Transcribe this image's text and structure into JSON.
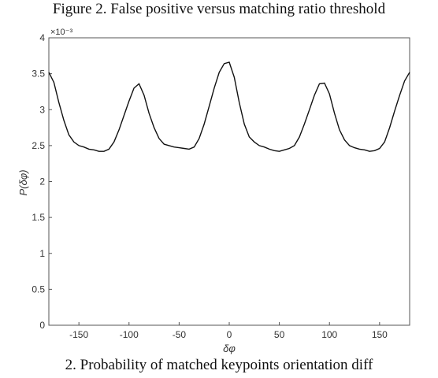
{
  "captions": {
    "top": "Figure 2. False positive versus matching ratio threshold",
    "bottom": "2. Probability of matched keypoints orientation diff"
  },
  "chart_data": {
    "type": "line",
    "title": "",
    "xlabel": "δφ",
    "ylabel": "P(δφ)",
    "y_exponent_label": "×10⁻³",
    "xlim": [
      -180,
      180
    ],
    "ylim": [
      0,
      4
    ],
    "xticks": [
      -150,
      -100,
      -50,
      0,
      50,
      100,
      150
    ],
    "yticks": [
      0,
      0.5,
      1,
      1.5,
      2,
      2.5,
      3,
      3.5,
      4
    ],
    "grid": false,
    "line_color": "#111111",
    "series": [
      {
        "x": [
          -180,
          -175,
          -170,
          -165,
          -160,
          -155,
          -150,
          -145,
          -140,
          -135,
          -130,
          -125,
          -120,
          -115,
          -110,
          -105,
          -100,
          -95,
          -90,
          -85,
          -80,
          -75,
          -70,
          -65,
          -60,
          -55,
          -50,
          -45,
          -40,
          -35,
          -30,
          -25,
          -20,
          -15,
          -10,
          -5,
          0,
          5,
          10,
          15,
          20,
          25,
          30,
          35,
          40,
          45,
          50,
          55,
          60,
          65,
          70,
          75,
          80,
          85,
          90,
          95,
          100,
          105,
          110,
          115,
          120,
          125,
          130,
          135,
          140,
          145,
          150,
          155,
          160,
          165,
          170,
          175,
          180
        ],
        "values": [
          3.52,
          3.38,
          3.1,
          2.85,
          2.65,
          2.55,
          2.5,
          2.48,
          2.45,
          2.44,
          2.42,
          2.42,
          2.45,
          2.55,
          2.72,
          2.92,
          3.12,
          3.3,
          3.36,
          3.2,
          2.95,
          2.75,
          2.6,
          2.52,
          2.5,
          2.48,
          2.47,
          2.46,
          2.45,
          2.48,
          2.6,
          2.8,
          3.05,
          3.3,
          3.52,
          3.64,
          3.66,
          3.45,
          3.1,
          2.8,
          2.62,
          2.55,
          2.5,
          2.48,
          2.45,
          2.43,
          2.42,
          2.44,
          2.46,
          2.5,
          2.62,
          2.8,
          3.0,
          3.2,
          3.36,
          3.37,
          3.22,
          2.95,
          2.72,
          2.58,
          2.5,
          2.47,
          2.45,
          2.44,
          2.42,
          2.43,
          2.46,
          2.55,
          2.75,
          2.98,
          3.2,
          3.4,
          3.52
        ]
      }
    ]
  }
}
